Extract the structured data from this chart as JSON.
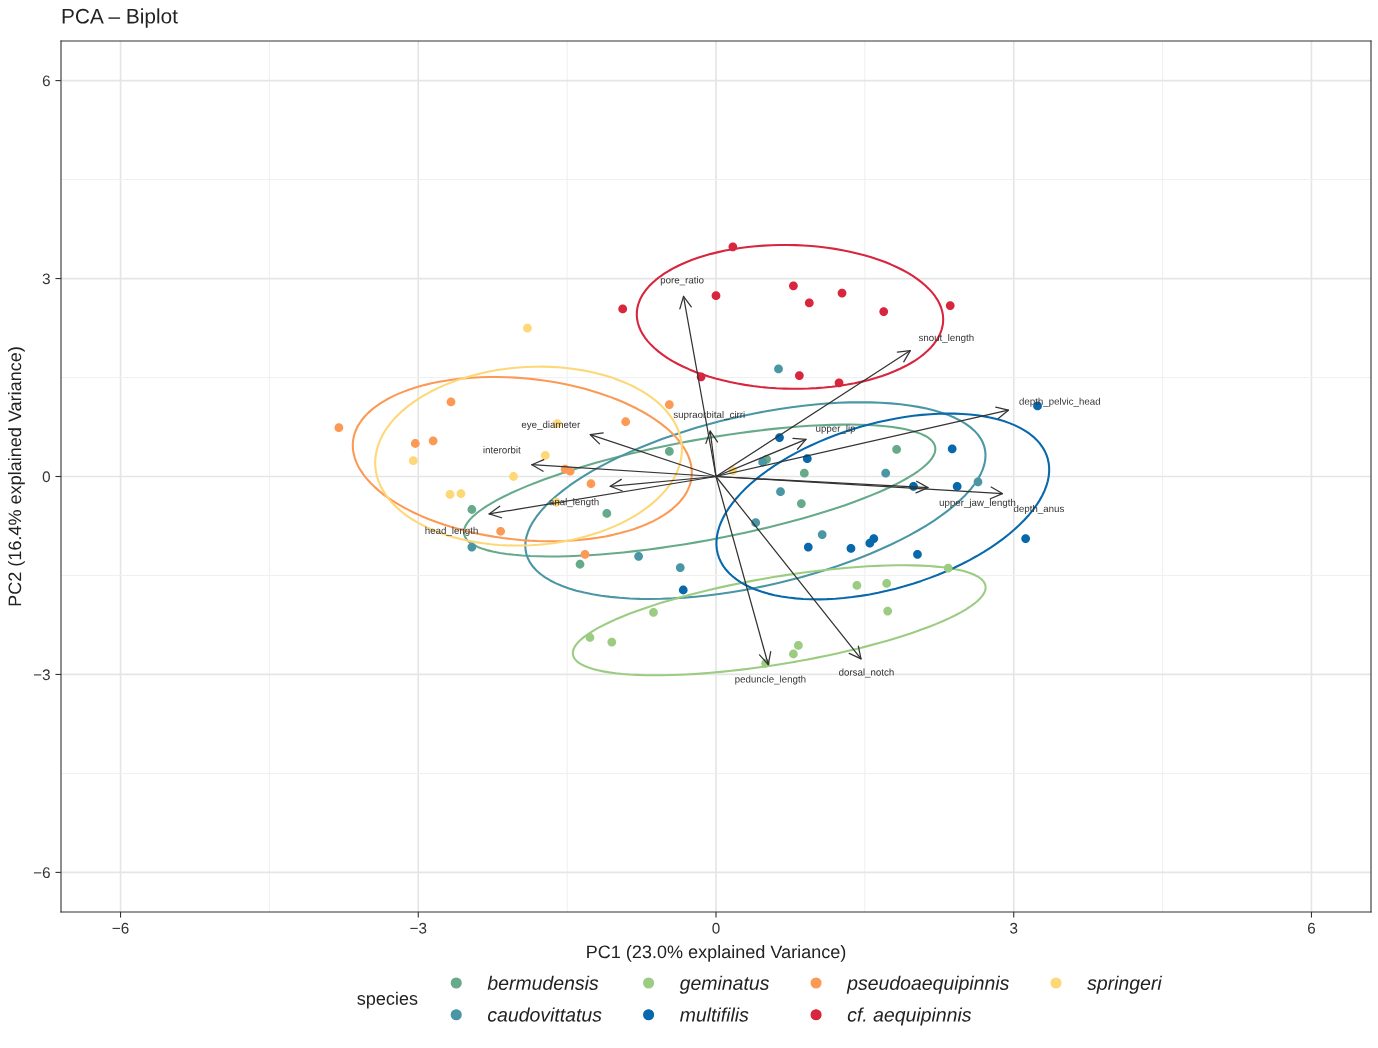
{
  "chart_data": {
    "type": "scatter",
    "title": "PCA – Biplot",
    "xlabel": "PC1 (23.0% explained Variance)",
    "ylabel": "PC2 (16.4% explained Variance)",
    "legend_title": "species",
    "legend": "bottom",
    "grid": true,
    "line_style": "solid",
    "xlim": [
      -6.6,
      6.6
    ],
    "ylim": [
      -6.6,
      6.6
    ],
    "xticks": [
      {
        "value": -6,
        "label": "−6"
      },
      {
        "value": -3,
        "label": "−3"
      },
      0,
      3,
      6
    ],
    "yticks": [
      {
        "value": -6,
        "label": "−6"
      },
      {
        "value": -3,
        "label": "−3"
      },
      0,
      3,
      6
    ],
    "series": [
      {
        "name": "bermudensis",
        "marker": "circle",
        "color": "#66aa8a",
        "x": [
          -0.47,
          -2.46,
          -1.1,
          -1.37,
          0.51,
          0.89,
          0.86,
          1.82
        ],
        "values": [
          0.38,
          -0.5,
          -0.56,
          -1.33,
          0.26,
          0.05,
          -0.41,
          0.41
        ]
      },
      {
        "name": "caudovittatus",
        "marker": "circle",
        "color": "#4a96a4",
        "x": [
          0.63,
          -2.46,
          -0.78,
          -0.36,
          0.4,
          0.65,
          1.71,
          2.64,
          0.47,
          1.07
        ],
        "values": [
          1.63,
          -1.07,
          -1.21,
          -1.38,
          -0.7,
          -0.23,
          0.05,
          -0.08,
          0.22,
          -0.88
        ]
      },
      {
        "name": "geminatus",
        "marker": "circle",
        "color": "#9ccc82",
        "x": [
          2.34,
          1.42,
          1.72,
          1.73,
          -0.63,
          -1.27,
          -1.05,
          0.83,
          0.78,
          0.5
        ],
        "values": [
          -1.39,
          -1.65,
          -1.62,
          -2.04,
          -2.06,
          -2.44,
          -2.51,
          -2.56,
          -2.69,
          -2.83
        ]
      },
      {
        "name": "multifilis",
        "marker": "circle",
        "color": "#0868ac",
        "x": [
          3.24,
          2.38,
          0.64,
          0.92,
          1.99,
          2.43,
          3.12,
          0.93,
          1.36,
          1.55,
          1.59,
          2.03,
          -0.33
        ],
        "values": [
          1.07,
          0.42,
          0.59,
          0.27,
          -0.15,
          -0.15,
          -0.94,
          -1.07,
          -1.09,
          -1.01,
          -0.94,
          -1.18,
          -1.72
        ]
      },
      {
        "name": "pseudoaequipinnis",
        "marker": "circle",
        "color": "#fc9a55",
        "x": [
          -3.8,
          -2.67,
          -3.03,
          -2.85,
          -0.47,
          -0.91,
          -1.52,
          -1.47,
          -1.26,
          -2.17,
          -1.32
        ],
        "values": [
          0.74,
          1.13,
          0.5,
          0.54,
          1.09,
          0.83,
          0.11,
          0.08,
          -0.11,
          -0.83,
          -1.18
        ]
      },
      {
        "name": "cf. aequipinnis",
        "marker": "circle",
        "color": "#d7263d",
        "x": [
          0.17,
          -0.94,
          0.0,
          0.78,
          0.94,
          1.27,
          1.69,
          2.36,
          -0.15,
          0.84,
          1.24
        ],
        "values": [
          3.48,
          2.54,
          2.74,
          2.89,
          2.63,
          2.78,
          2.5,
          2.59,
          1.51,
          1.53,
          1.42
        ]
      },
      {
        "name": "springeri",
        "marker": "circle",
        "color": "#fed777",
        "x": [
          -1.9,
          -1.6,
          -3.05,
          -1.72,
          -2.04,
          -2.68,
          -2.57,
          -1.61,
          0.17
        ],
        "values": [
          2.25,
          0.8,
          0.24,
          0.32,
          0.0,
          -0.27,
          -0.26,
          -0.39,
          0.09
        ]
      },
      {
        "name": "pore_ratio",
        "type": "line",
        "color": "#333333",
        "x": [
          0,
          -0.33
        ],
        "values": [
          0,
          2.75
        ]
      },
      {
        "name": "snout_length",
        "type": "line",
        "color": "#333333",
        "x": [
          0,
          1.97
        ],
        "values": [
          0,
          1.92
        ]
      },
      {
        "name": "depth_pelvic_head",
        "type": "line",
        "color": "#333333",
        "x": [
          0,
          2.96
        ],
        "values": [
          0,
          1.01
        ]
      },
      {
        "name": "supraorbital_cirri",
        "type": "line",
        "color": "#333333",
        "x": [
          0,
          -0.06
        ],
        "values": [
          0,
          0.71
        ]
      },
      {
        "name": "upper_lip",
        "type": "line",
        "color": "#333333",
        "x": [
          0,
          0.92
        ],
        "values": [
          0,
          0.57
        ]
      },
      {
        "name": "eye_diameter",
        "type": "line",
        "color": "#333333",
        "x": [
          0,
          -1.28
        ],
        "values": [
          0,
          0.64
        ]
      },
      {
        "name": "interorbit",
        "type": "line",
        "color": "#333333",
        "x": [
          0,
          -1.87
        ],
        "values": [
          0,
          0.18
        ]
      },
      {
        "name": "anal_length",
        "type": "line",
        "color": "#333333",
        "x": [
          0,
          -1.08
        ],
        "values": [
          0,
          -0.15
        ]
      },
      {
        "name": "head_length",
        "type": "line",
        "color": "#333333",
        "x": [
          0,
          -2.3
        ],
        "values": [
          0,
          -0.57
        ]
      },
      {
        "name": "upper_jaw_length",
        "type": "line",
        "color": "#333333",
        "x": [
          0,
          2.15
        ],
        "values": [
          0,
          -0.17
        ]
      },
      {
        "name": "depth_anus",
        "type": "line",
        "color": "#333333",
        "x": [
          0,
          2.9
        ],
        "values": [
          0,
          -0.26
        ]
      },
      {
        "name": "peduncle_length",
        "type": "line",
        "color": "#333333",
        "x": [
          0,
          0.53
        ],
        "values": [
          0,
          -2.87
        ]
      },
      {
        "name": "dorsal_notch",
        "type": "line",
        "color": "#333333",
        "x": [
          0,
          1.47
        ],
        "values": [
          0,
          -2.78
        ]
      }
    ]
  }
}
